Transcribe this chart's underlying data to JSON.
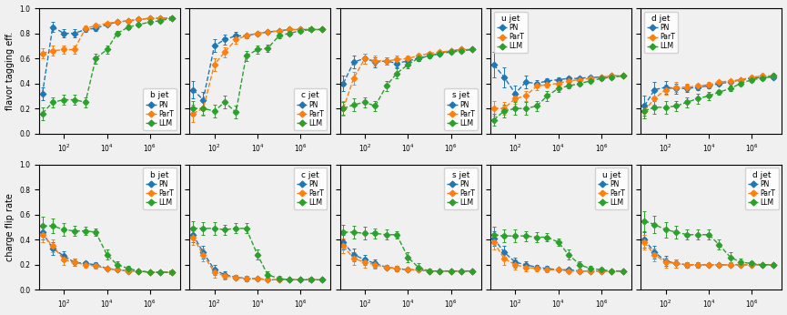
{
  "colors": {
    "PN": "#1f77b4",
    "ParT": "#ff7f0e",
    "LLM": "#2ca02c"
  },
  "marker": "D",
  "linestyle": "--",
  "row_labels": [
    "flavor tagging eff.",
    "charge flip rate"
  ],
  "col_labels": [
    "b jet",
    "c jet",
    "s jet",
    "u jet",
    "d jet"
  ],
  "series_names": [
    "PN",
    "ParT",
    "LLM"
  ],
  "x": [
    10.0,
    30.0,
    100.0,
    300.0,
    1000.0,
    3000.0,
    10000.0,
    30000.0,
    100000.0,
    300000.0,
    1000000.0,
    3000000.0,
    10000000.0
  ],
  "top_data": {
    "b jet": {
      "PN": [
        0.32,
        0.85,
        0.8,
        0.8,
        0.83,
        0.84,
        0.87,
        0.89,
        0.9,
        0.91,
        0.92,
        0.92,
        0.92
      ],
      "ParT": [
        0.64,
        0.66,
        0.67,
        0.67,
        0.84,
        0.86,
        0.88,
        0.89,
        0.9,
        0.91,
        0.92,
        0.92,
        0.92
      ],
      "LLM": [
        0.16,
        0.25,
        0.27,
        0.27,
        0.25,
        0.6,
        0.67,
        0.8,
        0.85,
        0.87,
        0.89,
        0.9,
        0.92
      ]
    },
    "c jet": {
      "PN": [
        0.35,
        0.27,
        0.7,
        0.75,
        0.78,
        0.78,
        0.8,
        0.81,
        0.82,
        0.83,
        0.83,
        0.83,
        0.83
      ],
      "ParT": [
        0.16,
        0.2,
        0.55,
        0.65,
        0.75,
        0.78,
        0.8,
        0.81,
        0.82,
        0.83,
        0.83,
        0.83,
        0.83
      ],
      "LLM": [
        0.2,
        0.2,
        0.18,
        0.25,
        0.17,
        0.62,
        0.67,
        0.68,
        0.78,
        0.8,
        0.82,
        0.83,
        0.83
      ]
    },
    "s jet": {
      "PN": [
        0.4,
        0.57,
        0.6,
        0.57,
        0.58,
        0.56,
        0.58,
        0.6,
        0.62,
        0.64,
        0.66,
        0.67,
        0.67
      ],
      "ParT": [
        0.2,
        0.44,
        0.6,
        0.58,
        0.58,
        0.59,
        0.6,
        0.62,
        0.64,
        0.65,
        0.66,
        0.67,
        0.67
      ],
      "LLM": [
        0.2,
        0.23,
        0.25,
        0.22,
        0.38,
        0.48,
        0.55,
        0.6,
        0.62,
        0.64,
        0.65,
        0.66,
        0.67
      ]
    },
    "u jet": {
      "PN": [
        0.55,
        0.45,
        0.32,
        0.41,
        0.4,
        0.42,
        0.43,
        0.44,
        0.44,
        0.45,
        0.45,
        0.46,
        0.46
      ],
      "ParT": [
        0.2,
        0.2,
        0.28,
        0.3,
        0.38,
        0.39,
        0.4,
        0.42,
        0.43,
        0.44,
        0.45,
        0.46,
        0.46
      ],
      "LLM": [
        0.11,
        0.18,
        0.2,
        0.2,
        0.22,
        0.3,
        0.36,
        0.38,
        0.4,
        0.42,
        0.44,
        0.45,
        0.46
      ]
    },
    "d jet": {
      "PN": [
        0.22,
        0.35,
        0.37,
        0.36,
        0.36,
        0.37,
        0.38,
        0.4,
        0.41,
        0.43,
        0.44,
        0.45,
        0.45
      ],
      "ParT": [
        0.18,
        0.28,
        0.35,
        0.37,
        0.37,
        0.38,
        0.39,
        0.41,
        0.42,
        0.43,
        0.45,
        0.46,
        0.46
      ],
      "LLM": [
        0.18,
        0.21,
        0.21,
        0.22,
        0.25,
        0.28,
        0.3,
        0.33,
        0.36,
        0.4,
        0.43,
        0.44,
        0.46
      ]
    }
  },
  "top_yerr": {
    "b jet": {
      "PN": [
        0.05,
        0.04,
        0.03,
        0.03,
        0.02,
        0.02,
        0.01,
        0.01,
        0.01,
        0.01,
        0.01,
        0.01,
        0.01
      ],
      "ParT": [
        0.04,
        0.04,
        0.03,
        0.03,
        0.02,
        0.02,
        0.01,
        0.01,
        0.01,
        0.01,
        0.01,
        0.01,
        0.01
      ],
      "LLM": [
        0.05,
        0.04,
        0.04,
        0.04,
        0.04,
        0.04,
        0.03,
        0.02,
        0.02,
        0.01,
        0.01,
        0.01,
        0.01
      ]
    },
    "c jet": {
      "PN": [
        0.07,
        0.06,
        0.05,
        0.04,
        0.03,
        0.02,
        0.01,
        0.01,
        0.01,
        0.01,
        0.01,
        0.01,
        0.01
      ],
      "ParT": [
        0.07,
        0.06,
        0.05,
        0.04,
        0.03,
        0.02,
        0.01,
        0.01,
        0.01,
        0.01,
        0.01,
        0.01,
        0.01
      ],
      "LLM": [
        0.06,
        0.05,
        0.05,
        0.05,
        0.05,
        0.04,
        0.03,
        0.03,
        0.02,
        0.01,
        0.01,
        0.01,
        0.01
      ]
    },
    "s jet": {
      "PN": [
        0.06,
        0.05,
        0.04,
        0.04,
        0.03,
        0.03,
        0.02,
        0.02,
        0.01,
        0.01,
        0.01,
        0.01,
        0.01
      ],
      "ParT": [
        0.06,
        0.05,
        0.04,
        0.04,
        0.03,
        0.03,
        0.02,
        0.02,
        0.01,
        0.01,
        0.01,
        0.01,
        0.01
      ],
      "LLM": [
        0.05,
        0.05,
        0.04,
        0.04,
        0.04,
        0.04,
        0.03,
        0.02,
        0.02,
        0.01,
        0.01,
        0.01,
        0.01
      ]
    },
    "u jet": {
      "PN": [
        0.1,
        0.08,
        0.06,
        0.05,
        0.03,
        0.02,
        0.02,
        0.01,
        0.01,
        0.01,
        0.01,
        0.01,
        0.01
      ],
      "ParT": [
        0.06,
        0.05,
        0.04,
        0.04,
        0.03,
        0.02,
        0.02,
        0.01,
        0.01,
        0.01,
        0.01,
        0.01,
        0.01
      ],
      "LLM": [
        0.05,
        0.05,
        0.05,
        0.05,
        0.04,
        0.04,
        0.03,
        0.02,
        0.02,
        0.01,
        0.01,
        0.01,
        0.01
      ]
    },
    "d jet": {
      "PN": [
        0.08,
        0.06,
        0.05,
        0.04,
        0.03,
        0.02,
        0.02,
        0.01,
        0.01,
        0.01,
        0.01,
        0.01,
        0.01
      ],
      "ParT": [
        0.06,
        0.05,
        0.04,
        0.04,
        0.03,
        0.02,
        0.02,
        0.01,
        0.01,
        0.01,
        0.01,
        0.01,
        0.01
      ],
      "LLM": [
        0.06,
        0.05,
        0.05,
        0.04,
        0.04,
        0.04,
        0.03,
        0.02,
        0.02,
        0.01,
        0.01,
        0.01,
        0.01
      ]
    }
  },
  "bot_data": {
    "b jet": {
      "PN": [
        0.46,
        0.33,
        0.27,
        0.22,
        0.21,
        0.2,
        0.17,
        0.16,
        0.15,
        0.15,
        0.14,
        0.14,
        0.14
      ],
      "ParT": [
        0.44,
        0.35,
        0.24,
        0.22,
        0.2,
        0.19,
        0.17,
        0.16,
        0.15,
        0.15,
        0.14,
        0.14,
        0.14
      ],
      "LLM": [
        0.51,
        0.51,
        0.48,
        0.47,
        0.47,
        0.46,
        0.28,
        0.2,
        0.17,
        0.15,
        0.14,
        0.14,
        0.14
      ]
    },
    "c jet": {
      "PN": [
        0.44,
        0.3,
        0.16,
        0.12,
        0.1,
        0.09,
        0.09,
        0.08,
        0.08,
        0.08,
        0.08,
        0.08,
        0.08
      ],
      "ParT": [
        0.42,
        0.28,
        0.14,
        0.11,
        0.1,
        0.09,
        0.09,
        0.08,
        0.08,
        0.08,
        0.08,
        0.08,
        0.08
      ],
      "LLM": [
        0.49,
        0.49,
        0.49,
        0.48,
        0.49,
        0.49,
        0.28,
        0.12,
        0.09,
        0.08,
        0.08,
        0.08,
        0.08
      ]
    },
    "s jet": {
      "PN": [
        0.38,
        0.28,
        0.24,
        0.21,
        0.18,
        0.17,
        0.16,
        0.16,
        0.15,
        0.15,
        0.15,
        0.15,
        0.15
      ],
      "ParT": [
        0.35,
        0.25,
        0.22,
        0.2,
        0.18,
        0.17,
        0.16,
        0.16,
        0.15,
        0.15,
        0.15,
        0.15,
        0.15
      ],
      "LLM": [
        0.46,
        0.46,
        0.45,
        0.45,
        0.44,
        0.44,
        0.26,
        0.18,
        0.15,
        0.15,
        0.15,
        0.15,
        0.15
      ]
    },
    "u jet": {
      "PN": [
        0.41,
        0.3,
        0.22,
        0.2,
        0.18,
        0.17,
        0.16,
        0.16,
        0.15,
        0.15,
        0.15,
        0.15,
        0.15
      ],
      "ParT": [
        0.38,
        0.25,
        0.2,
        0.18,
        0.17,
        0.16,
        0.16,
        0.15,
        0.15,
        0.15,
        0.15,
        0.15,
        0.15
      ],
      "LLM": [
        0.44,
        0.43,
        0.43,
        0.43,
        0.42,
        0.42,
        0.38,
        0.28,
        0.2,
        0.17,
        0.16,
        0.15,
        0.15
      ]
    },
    "d jet": {
      "PN": [
        0.4,
        0.3,
        0.23,
        0.21,
        0.2,
        0.2,
        0.2,
        0.2,
        0.2,
        0.2,
        0.2,
        0.2,
        0.2
      ],
      "ParT": [
        0.38,
        0.28,
        0.22,
        0.21,
        0.2,
        0.2,
        0.2,
        0.2,
        0.2,
        0.2,
        0.2,
        0.2,
        0.2
      ],
      "LLM": [
        0.55,
        0.52,
        0.48,
        0.46,
        0.44,
        0.44,
        0.44,
        0.36,
        0.26,
        0.22,
        0.21,
        0.2,
        0.2
      ]
    }
  },
  "bot_yerr": {
    "b jet": {
      "PN": [
        0.06,
        0.05,
        0.04,
        0.03,
        0.02,
        0.02,
        0.01,
        0.01,
        0.01,
        0.01,
        0.01,
        0.01,
        0.01
      ],
      "ParT": [
        0.06,
        0.05,
        0.04,
        0.03,
        0.02,
        0.02,
        0.01,
        0.01,
        0.01,
        0.01,
        0.01,
        0.01,
        0.01
      ],
      "LLM": [
        0.07,
        0.06,
        0.05,
        0.04,
        0.03,
        0.03,
        0.04,
        0.03,
        0.02,
        0.01,
        0.01,
        0.01,
        0.01
      ]
    },
    "c jet": {
      "PN": [
        0.06,
        0.05,
        0.04,
        0.03,
        0.02,
        0.02,
        0.01,
        0.01,
        0.01,
        0.01,
        0.01,
        0.01,
        0.01
      ],
      "ParT": [
        0.06,
        0.05,
        0.04,
        0.03,
        0.02,
        0.02,
        0.01,
        0.01,
        0.01,
        0.01,
        0.01,
        0.01,
        0.01
      ],
      "LLM": [
        0.06,
        0.05,
        0.05,
        0.04,
        0.04,
        0.04,
        0.04,
        0.03,
        0.02,
        0.01,
        0.01,
        0.01,
        0.01
      ]
    },
    "s jet": {
      "PN": [
        0.06,
        0.05,
        0.04,
        0.03,
        0.02,
        0.02,
        0.01,
        0.01,
        0.01,
        0.01,
        0.01,
        0.01,
        0.01
      ],
      "ParT": [
        0.06,
        0.05,
        0.04,
        0.03,
        0.02,
        0.02,
        0.01,
        0.01,
        0.01,
        0.01,
        0.01,
        0.01,
        0.01
      ],
      "LLM": [
        0.06,
        0.05,
        0.05,
        0.04,
        0.04,
        0.03,
        0.04,
        0.03,
        0.02,
        0.01,
        0.01,
        0.01,
        0.01
      ]
    },
    "u jet": {
      "PN": [
        0.06,
        0.05,
        0.04,
        0.03,
        0.02,
        0.02,
        0.01,
        0.01,
        0.01,
        0.01,
        0.01,
        0.01,
        0.01
      ],
      "ParT": [
        0.06,
        0.05,
        0.04,
        0.03,
        0.02,
        0.02,
        0.01,
        0.01,
        0.01,
        0.01,
        0.01,
        0.01,
        0.01
      ],
      "LLM": [
        0.06,
        0.05,
        0.05,
        0.04,
        0.04,
        0.03,
        0.03,
        0.04,
        0.03,
        0.02,
        0.01,
        0.01,
        0.01
      ]
    },
    "d jet": {
      "PN": [
        0.06,
        0.05,
        0.04,
        0.03,
        0.02,
        0.02,
        0.01,
        0.01,
        0.01,
        0.01,
        0.01,
        0.01,
        0.01
      ],
      "ParT": [
        0.06,
        0.05,
        0.04,
        0.03,
        0.02,
        0.02,
        0.01,
        0.01,
        0.01,
        0.01,
        0.01,
        0.01,
        0.01
      ],
      "LLM": [
        0.08,
        0.07,
        0.06,
        0.05,
        0.04,
        0.04,
        0.04,
        0.04,
        0.04,
        0.03,
        0.02,
        0.01,
        0.01
      ]
    }
  },
  "ylim": [
    0.0,
    1.0
  ],
  "yticks": [
    0.0,
    0.2,
    0.4,
    0.6,
    0.8,
    1.0
  ],
  "xlim": [
    7,
    25000000.0
  ],
  "top_legend_locs": [
    "lower right",
    "lower right",
    "lower right",
    "upper left",
    "upper left"
  ],
  "bot_legend_locs": [
    "upper right",
    "upper right",
    "upper right",
    "upper right",
    "upper right"
  ],
  "background": "#f0f0f0",
  "subplot_bg": "#f0f0f0",
  "markersize": 3.5,
  "linewidth": 1.0,
  "capsize": 1.5,
  "elinewidth": 0.7,
  "fontsize_label": 7.0,
  "fontsize_legend_title": 6.5,
  "fontsize_legend": 5.5,
  "fontsize_tick": 5.5
}
